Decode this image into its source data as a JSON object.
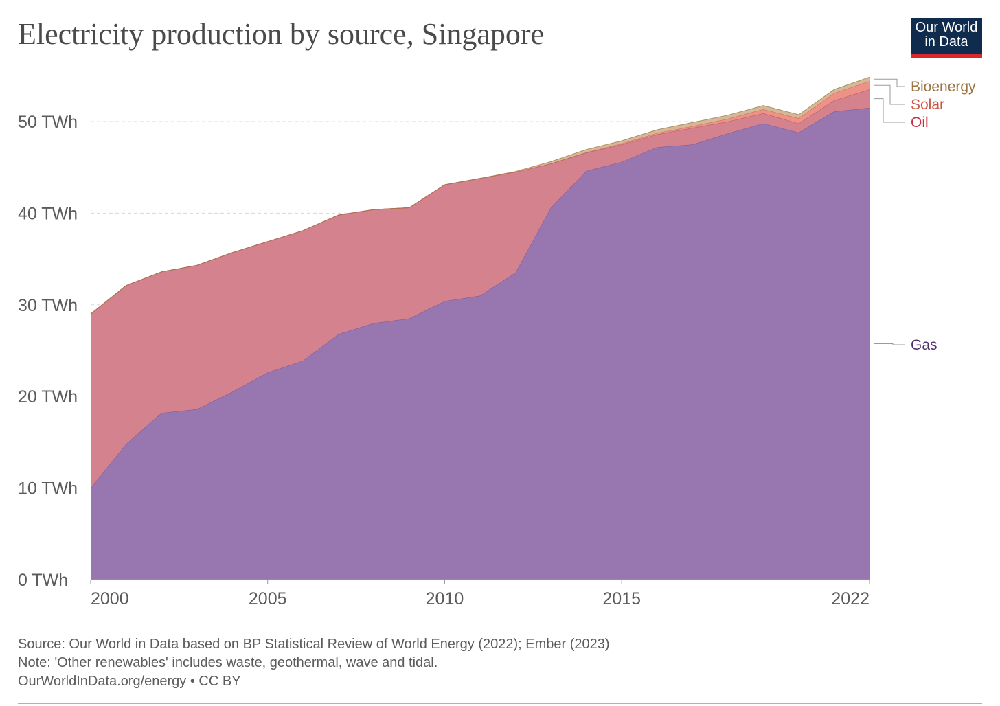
{
  "header": {
    "title": "Electricity production by source, Singapore",
    "logo_line1": "Our World",
    "logo_line2": "in Data"
  },
  "footer": {
    "source": "Source: Our World in Data based on BP Statistical Review of World Energy (2022); Ember (2023)",
    "note": "Note: 'Other renewables' includes waste, geothermal, wave and tidal.",
    "license": "OurWorldInData.org/energy • CC BY"
  },
  "colors": {
    "gas": "#9877b0",
    "gas_line": "#6d4a8c",
    "oil": "#d3828e",
    "oil_line": "#a24a55",
    "solar": "#ee9288",
    "solar_line": "#c9544a",
    "bioenergy": "#d4b996",
    "bioenergy_line": "#a07a4c",
    "gas_label": "#4f2d72",
    "oil_label": "#c43142",
    "solar_label": "#d0533f",
    "bioenergy_label": "#9a7341",
    "grid": "#d8d8d8",
    "tick": "#5b5b5b"
  },
  "chart_data": {
    "type": "area",
    "stacked": true,
    "title": "Electricity production by source, Singapore",
    "x": [
      2000,
      2001,
      2002,
      2003,
      2004,
      2005,
      2006,
      2007,
      2008,
      2009,
      2010,
      2011,
      2012,
      2013,
      2014,
      2015,
      2016,
      2017,
      2018,
      2019,
      2020,
      2021,
      2022
    ],
    "series": [
      {
        "name": "Gas",
        "values": [
          10.0,
          14.8,
          18.2,
          18.6,
          20.5,
          22.6,
          23.9,
          26.8,
          28.0,
          28.5,
          30.4,
          31.0,
          33.5,
          40.6,
          44.6,
          45.6,
          47.2,
          47.5,
          48.7,
          49.8,
          48.8,
          51.1,
          51.5
        ]
      },
      {
        "name": "Oil",
        "values": [
          19.0,
          17.3,
          15.4,
          15.7,
          15.2,
          14.3,
          14.2,
          13.0,
          12.4,
          12.1,
          12.7,
          12.8,
          11.0,
          4.8,
          2.0,
          1.9,
          1.4,
          1.8,
          1.3,
          1.1,
          1.0,
          1.2,
          2.0
        ]
      },
      {
        "name": "Solar",
        "values": [
          0.0,
          0.0,
          0.0,
          0.0,
          0.0,
          0.0,
          0.0,
          0.0,
          0.0,
          0.0,
          0.0,
          0.0,
          0.0,
          0.02,
          0.05,
          0.1,
          0.15,
          0.2,
          0.3,
          0.45,
          0.55,
          0.8,
          0.9
        ]
      },
      {
        "name": "Bioenergy",
        "values": [
          0.0,
          0.0,
          0.0,
          0.0,
          0.0,
          0.0,
          0.0,
          0.0,
          0.0,
          0.0,
          0.0,
          0.0,
          0.05,
          0.2,
          0.3,
          0.3,
          0.35,
          0.4,
          0.4,
          0.4,
          0.4,
          0.4,
          0.45
        ]
      }
    ],
    "y_ticks": [
      0,
      10,
      20,
      30,
      40,
      50
    ],
    "y_tick_labels": [
      "0 TWh",
      "10 TWh",
      "20 TWh",
      "30 TWh",
      "40 TWh",
      "50 TWh"
    ],
    "x_ticks": [
      2000,
      2005,
      2010,
      2015,
      2022
    ],
    "x_tick_labels": [
      "2000",
      "2005",
      "2010",
      "2015",
      "2022"
    ],
    "ylim": [
      0,
      55
    ],
    "xlim": [
      2000,
      2022
    ],
    "grid": true,
    "legend": "right, labels at series ends",
    "xlabel": "",
    "ylabel": ""
  }
}
